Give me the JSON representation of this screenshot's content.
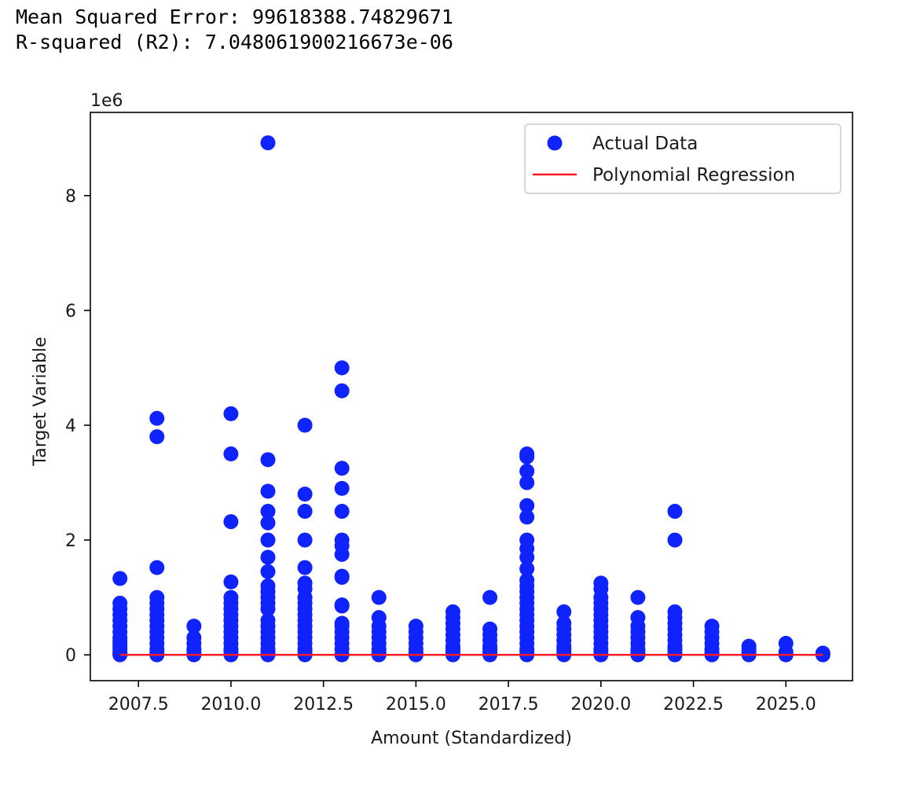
{
  "output": {
    "mse_line": "Mean Squared Error: 99618388.74829671",
    "r2_line": "R-squared (R2): 7.048061900216673e-06"
  },
  "colors": {
    "points": "#0f23ff",
    "line": "#ff1a24",
    "axes": "#000000"
  },
  "chart_data": {
    "type": "scatter",
    "title": "",
    "xlabel": "Amount (Standardized)",
    "ylabel": "Target Variable",
    "y_offset_label": "1e6",
    "xlim": [
      2006.2,
      2026.8
    ],
    "ylim": [
      -0.45,
      9.45
    ],
    "xticks": [
      2007.5,
      2010.0,
      2012.5,
      2015.0,
      2017.5,
      2020.0,
      2022.5,
      2025.0
    ],
    "xtick_labels": [
      "2007.5",
      "2010.0",
      "2012.5",
      "2015.0",
      "2017.5",
      "2020.0",
      "2022.5",
      "2025.0"
    ],
    "yticks": [
      0,
      2,
      4,
      6,
      8
    ],
    "ytick_labels": [
      "0",
      "2",
      "4",
      "6",
      "8"
    ],
    "legend": {
      "position": "top-right",
      "entries": [
        "Actual Data",
        "Polynomial Regression"
      ]
    },
    "series": [
      {
        "name": "Actual Data",
        "kind": "scatter",
        "points_by_x": [
          {
            "x": 2007,
            "y": [
              1.33,
              0.9,
              0.8,
              0.7,
              0.6,
              0.5,
              0.4,
              0.3,
              0.25,
              0.2,
              0.15,
              0.1,
              0.05,
              0.02,
              0
            ]
          },
          {
            "x": 2008,
            "y": [
              4.12,
              3.8,
              1.52,
              1.0,
              0.9,
              0.8,
              0.7,
              0.6,
              0.5,
              0.4,
              0.3,
              0.2,
              0.1,
              0.05,
              0
            ]
          },
          {
            "x": 2009,
            "y": [
              0.5,
              0.3,
              0.2,
              0.1,
              0.05,
              0
            ]
          },
          {
            "x": 2010,
            "y": [
              4.2,
              3.5,
              2.32,
              1.27,
              1.0,
              0.9,
              0.8,
              0.7,
              0.6,
              0.5,
              0.4,
              0.3,
              0.2,
              0.1,
              0.05,
              0
            ]
          },
          {
            "x": 2011,
            "y": [
              8.92,
              3.4,
              2.85,
              2.5,
              2.3,
              2.0,
              1.7,
              1.45,
              1.2,
              1.1,
              1.0,
              0.9,
              0.8,
              0.6,
              0.5,
              0.4,
              0.3,
              0.2,
              0.1,
              0.05,
              0
            ]
          },
          {
            "x": 2012,
            "y": [
              4.0,
              2.8,
              2.5,
              2.0,
              1.52,
              1.25,
              1.15,
              1.0,
              0.9,
              0.8,
              0.7,
              0.6,
              0.5,
              0.4,
              0.3,
              0.2,
              0.1,
              0.05,
              0
            ]
          },
          {
            "x": 2013,
            "y": [
              5.0,
              4.6,
              3.25,
              2.9,
              2.5,
              2.0,
              1.9,
              1.75,
              1.37,
              1.35,
              0.87,
              0.85,
              0.55,
              0.5,
              0.4,
              0.3,
              0.2,
              0.1,
              0
            ]
          },
          {
            "x": 2014,
            "y": [
              1.0,
              0.65,
              0.5,
              0.4,
              0.3,
              0.2,
              0.1,
              0.05,
              0
            ]
          },
          {
            "x": 2015,
            "y": [
              0.5,
              0.4,
              0.3,
              0.2,
              0.1,
              0.05,
              0
            ]
          },
          {
            "x": 2016,
            "y": [
              0.75,
              0.65,
              0.55,
              0.45,
              0.35,
              0.25,
              0.15,
              0.1,
              0.05,
              0
            ]
          },
          {
            "x": 2017,
            "y": [
              1.0,
              0.45,
              0.35,
              0.25,
              0.15,
              0.1,
              0.05,
              0
            ]
          },
          {
            "x": 2018,
            "y": [
              3.5,
              3.45,
              3.2,
              3.0,
              2.6,
              2.4,
              2.0,
              1.85,
              1.7,
              1.5,
              1.3,
              1.2,
              1.1,
              1.0,
              0.9,
              0.8,
              0.7,
              0.6,
              0.5,
              0.4,
              0.3,
              0.2,
              0.1,
              0.05,
              0
            ]
          },
          {
            "x": 2019,
            "y": [
              0.75,
              0.55,
              0.45,
              0.35,
              0.25,
              0.15,
              0.1,
              0.05,
              0
            ]
          },
          {
            "x": 2020,
            "y": [
              1.25,
              1.15,
              1.0,
              0.9,
              0.8,
              0.7,
              0.6,
              0.5,
              0.4,
              0.3,
              0.2,
              0.1,
              0.05,
              0
            ]
          },
          {
            "x": 2021,
            "y": [
              1.0,
              0.65,
              0.5,
              0.4,
              0.3,
              0.2,
              0.1,
              0.05,
              0
            ]
          },
          {
            "x": 2022,
            "y": [
              2.5,
              2.0,
              0.75,
              0.65,
              0.55,
              0.45,
              0.35,
              0.25,
              0.15,
              0.1,
              0.05,
              0
            ]
          },
          {
            "x": 2023,
            "y": [
              0.5,
              0.4,
              0.3,
              0.2,
              0.1,
              0.05,
              0
            ]
          },
          {
            "x": 2024,
            "y": [
              0.15,
              0.1,
              0.05,
              0
            ]
          },
          {
            "x": 2025,
            "y": [
              0.2,
              0.05,
              0
            ]
          },
          {
            "x": 2026,
            "y": [
              0.03,
              0
            ]
          }
        ]
      },
      {
        "name": "Polynomial Regression",
        "kind": "line",
        "x": [
          2007,
          2026
        ],
        "y": [
          0.0,
          0.0
        ]
      }
    ]
  }
}
